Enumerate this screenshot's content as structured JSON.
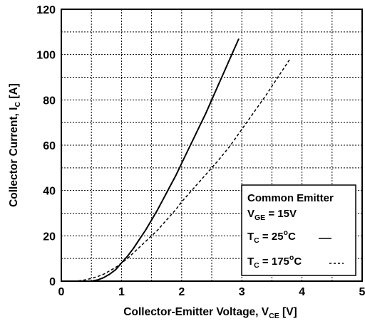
{
  "chart_data": {
    "type": "line",
    "xlabel": {
      "main": "Collector-Emitter Voltage, V",
      "sub": "CE",
      "unit": " [V]"
    },
    "ylabel": {
      "main": "Collector Current, I",
      "sub": "C",
      "unit": " [A]"
    },
    "xlim": [
      0,
      5
    ],
    "ylim": [
      0,
      120
    ],
    "xticks": [
      0,
      1,
      2,
      3,
      4,
      5
    ],
    "yticks": [
      0,
      20,
      40,
      60,
      80,
      100,
      120
    ],
    "grid": "dashed",
    "legend": {
      "placement": "bottom-right",
      "title": "Common Emitter",
      "condition": {
        "main": "V",
        "sub": "GE",
        "rest": " = 15V"
      },
      "entries": [
        {
          "main": "T",
          "sub": "C",
          "rest_pre": " = 25",
          "sup": "o",
          "rest_post": "C",
          "style": "solid"
        },
        {
          "main": "T",
          "sub": "C",
          "rest_pre": " = 175",
          "sup": "o",
          "rest_post": "C",
          "style": "dashed"
        }
      ]
    },
    "series": [
      {
        "style": "solid",
        "x": [
          0.5,
          0.6,
          0.7,
          0.8,
          0.9,
          1.0,
          1.1,
          1.2,
          1.3,
          1.4,
          1.5,
          1.6,
          1.7,
          1.8,
          1.9,
          2.0,
          2.1,
          2.2,
          2.3,
          2.4,
          2.5,
          2.6,
          2.7,
          2.8,
          2.9,
          2.95
        ],
        "y": [
          0,
          0.5,
          1.5,
          3,
          5,
          8,
          11,
          14.5,
          18.5,
          22.5,
          27,
          31.5,
          36.5,
          41.5,
          46.5,
          52,
          57.5,
          63,
          68.5,
          74,
          80,
          86,
          92,
          98,
          104,
          107
        ]
      },
      {
        "style": "dashed",
        "x": [
          0.2,
          0.3,
          0.4,
          0.5,
          0.6,
          0.7,
          0.8,
          0.9,
          1.0,
          1.1,
          1.2,
          1.3,
          1.4,
          1.5,
          1.6,
          1.7,
          1.8,
          1.9,
          2.0,
          2.2,
          2.4,
          2.6,
          2.8,
          3.0,
          3.2,
          3.4,
          3.6,
          3.8
        ],
        "y": [
          0,
          0.2,
          0.6,
          1.2,
          2,
          3,
          4.5,
          6,
          8,
          10,
          12.5,
          15,
          17.5,
          20,
          22.5,
          25.5,
          28.5,
          31.5,
          35,
          41,
          47,
          53,
          59.5,
          67,
          74.5,
          82,
          90,
          98
        ]
      }
    ]
  }
}
